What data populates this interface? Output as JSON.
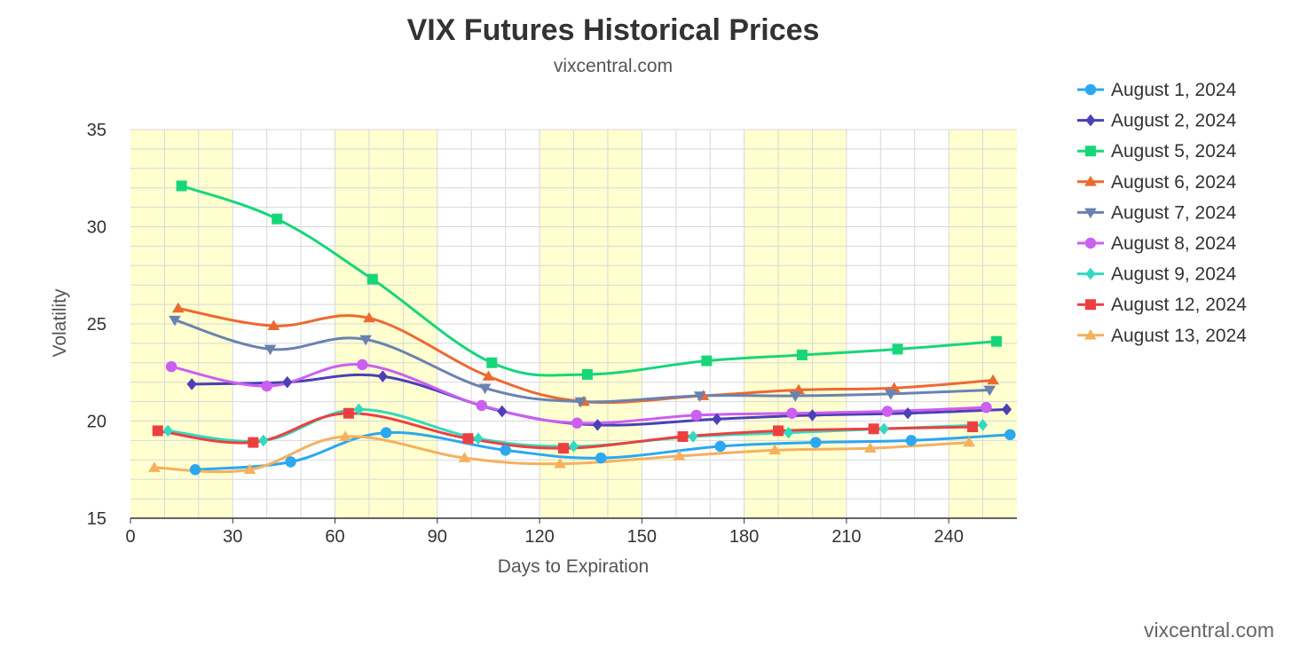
{
  "chart_data": {
    "type": "line",
    "title": "VIX Futures Historical Prices",
    "subtitle": "vixcentral.com",
    "xlabel": "Days to Expiration",
    "ylabel": "Volatility",
    "xlim": [
      0,
      260
    ],
    "ylim": [
      15,
      35
    ],
    "xticks": [
      "0",
      "30",
      "60",
      "90",
      "120",
      "150",
      "180",
      "210",
      "240"
    ],
    "yticks": [
      "15",
      "20",
      "25",
      "30",
      "35"
    ],
    "grid": true,
    "legend_position": "right",
    "band_color": "#ffffd0",
    "credit": "vixcentral.com",
    "series": [
      {
        "name": "August 1, 2024",
        "color": "#2ca8f0",
        "marker": "circle",
        "x": [
          19,
          47,
          75,
          110,
          138,
          173,
          201,
          229,
          258
        ],
        "y": [
          17.5,
          17.9,
          19.4,
          18.5,
          18.1,
          18.7,
          18.9,
          19.0,
          19.3
        ]
      },
      {
        "name": "August 2, 2024",
        "color": "#4b40b5",
        "marker": "diamond",
        "x": [
          18,
          46,
          74,
          109,
          137,
          172,
          200,
          228,
          257
        ],
        "y": [
          21.9,
          22.0,
          22.3,
          20.5,
          19.8,
          20.1,
          20.3,
          20.4,
          20.6
        ]
      },
      {
        "name": "August 5, 2024",
        "color": "#17d67a",
        "marker": "square",
        "x": [
          15,
          43,
          71,
          106,
          134,
          169,
          197,
          225,
          254
        ],
        "y": [
          32.1,
          30.4,
          27.3,
          23.0,
          22.4,
          23.1,
          23.4,
          23.7,
          24.1
        ]
      },
      {
        "name": "August 6, 2024",
        "color": "#ec6a30",
        "marker": "triangle",
        "x": [
          14,
          42,
          70,
          105,
          133,
          168,
          196,
          224,
          253
        ],
        "y": [
          25.8,
          24.9,
          25.3,
          22.3,
          21.0,
          21.3,
          21.6,
          21.7,
          22.1
        ]
      },
      {
        "name": "August 7, 2024",
        "color": "#6b82b0",
        "marker": "triangle-down",
        "x": [
          13,
          41,
          69,
          104,
          132,
          167,
          195,
          223,
          252
        ],
        "y": [
          25.2,
          23.7,
          24.2,
          21.7,
          21.0,
          21.3,
          21.3,
          21.4,
          21.6
        ]
      },
      {
        "name": "August 8, 2024",
        "color": "#cc5ef0",
        "marker": "circle",
        "x": [
          12,
          40,
          68,
          103,
          131,
          166,
          194,
          222,
          251
        ],
        "y": [
          22.8,
          21.8,
          22.9,
          20.8,
          19.9,
          20.3,
          20.4,
          20.5,
          20.7
        ]
      },
      {
        "name": "August 9, 2024",
        "color": "#33d9c0",
        "marker": "diamond",
        "x": [
          11,
          39,
          67,
          102,
          130,
          165,
          193,
          221,
          250
        ],
        "y": [
          19.5,
          19.0,
          20.6,
          19.1,
          18.7,
          19.2,
          19.4,
          19.6,
          19.8
        ]
      },
      {
        "name": "August 12, 2024",
        "color": "#ec4040",
        "marker": "square",
        "x": [
          8,
          36,
          64,
          99,
          127,
          162,
          190,
          218,
          247
        ],
        "y": [
          19.5,
          18.9,
          20.4,
          19.1,
          18.6,
          19.2,
          19.5,
          19.6,
          19.7
        ]
      },
      {
        "name": "August 13, 2024",
        "color": "#f5b060",
        "marker": "triangle",
        "x": [
          7,
          35,
          63,
          98,
          126,
          161,
          189,
          217,
          246
        ],
        "y": [
          17.6,
          17.5,
          19.2,
          18.1,
          17.8,
          18.2,
          18.5,
          18.6,
          18.9
        ]
      }
    ]
  }
}
